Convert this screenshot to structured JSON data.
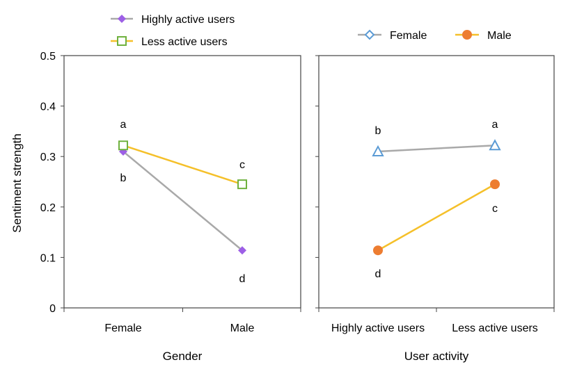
{
  "chart_data": [
    {
      "type": "line",
      "xlabel": "Gender",
      "ylabel": "Sentiment strength",
      "categories": [
        "Female",
        "Male"
      ],
      "ylim": [
        0,
        0.5
      ],
      "yticks": [
        "0",
        "0.1",
        "0.2",
        "0.3",
        "0.4",
        "0.5"
      ],
      "ytick_values": [
        0,
        0.1,
        0.2,
        0.3,
        0.4,
        0.5
      ],
      "legend": "top",
      "series": [
        {
          "name": "Highly active users",
          "values": [
            0.31,
            0.114
          ],
          "color": "#a9a9a9",
          "marker": "diamond",
          "marker_color": "#9d5fe6",
          "point_labels": [
            "b",
            "d"
          ]
        },
        {
          "name": "Less active users",
          "values": [
            0.322,
            0.245
          ],
          "color": "#f5c02a",
          "marker": "square-open",
          "marker_color": "#6fb13e",
          "point_labels": [
            "a",
            "c"
          ]
        }
      ]
    },
    {
      "type": "line",
      "xlabel": "User activity",
      "ylabel": "",
      "categories": [
        "Highly active users",
        "Less active users"
      ],
      "ylim": [
        0,
        0.5
      ],
      "legend": "top",
      "series": [
        {
          "name": "Female",
          "values": [
            0.31,
            0.322
          ],
          "color": "#a9a9a9",
          "marker": "triangle-open",
          "marker_color": "#5b9bd5",
          "legend_marker": "diamond-open",
          "point_labels": [
            "b",
            "a"
          ]
        },
        {
          "name": "Male",
          "values": [
            0.114,
            0.245
          ],
          "color": "#f5c02a",
          "marker": "circle",
          "marker_color": "#ed7d31",
          "legend_marker": "circle",
          "point_labels": [
            "d",
            "c"
          ]
        }
      ]
    }
  ]
}
